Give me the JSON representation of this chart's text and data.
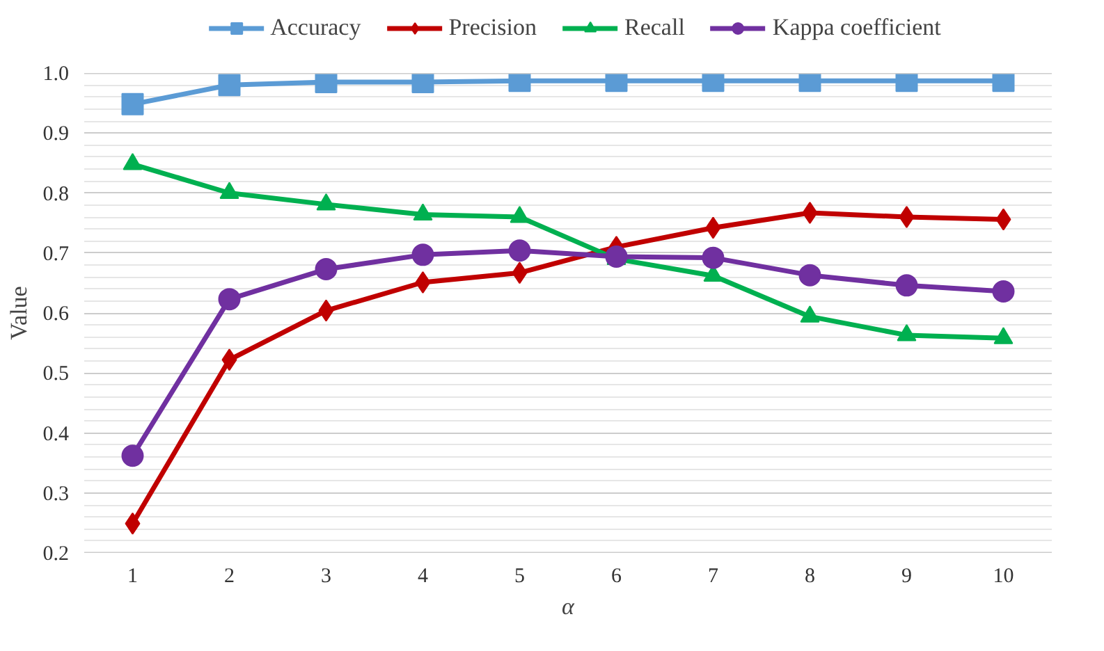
{
  "chart_data": {
    "type": "line",
    "xlabel": "α",
    "ylabel": "Value",
    "categories": [
      "1",
      "2",
      "3",
      "4",
      "5",
      "6",
      "7",
      "8",
      "9",
      "10"
    ],
    "ylim": [
      0.2,
      1.0
    ],
    "yticks": [
      {
        "value": 0.2,
        "label": "0.2"
      },
      {
        "value": 0.3,
        "label": "0.3"
      },
      {
        "value": 0.4,
        "label": "0.4"
      },
      {
        "value": 0.5,
        "label": "0.5"
      },
      {
        "value": 0.6,
        "label": "0.6"
      },
      {
        "value": 0.7,
        "label": "0.7"
      },
      {
        "value": 0.8,
        "label": "0.8"
      },
      {
        "value": 0.9,
        "label": "0.9"
      },
      {
        "value": 1.0,
        "label": "1.0"
      }
    ],
    "grid": "y",
    "legend": "top",
    "series": [
      {
        "name": "Accuracy",
        "color": "#5b9bd5",
        "marker": "square",
        "values": [
          0.948,
          0.98,
          0.985,
          0.985,
          0.987,
          0.987,
          0.987,
          0.987,
          0.987,
          0.987
        ]
      },
      {
        "name": "Precision",
        "color": "#c00000",
        "marker": "diamond",
        "values": [
          0.249,
          0.522,
          0.604,
          0.651,
          0.667,
          0.71,
          0.742,
          0.767,
          0.76,
          0.756
        ]
      },
      {
        "name": "Recall",
        "color": "#00b050",
        "marker": "triangle",
        "values": [
          0.848,
          0.8,
          0.781,
          0.764,
          0.76,
          0.69,
          0.662,
          0.594,
          0.563,
          0.558
        ]
      },
      {
        "name": "Kappa coefficient",
        "color": "#7030a0",
        "marker": "circle",
        "values": [
          0.362,
          0.623,
          0.673,
          0.697,
          0.704,
          0.694,
          0.692,
          0.663,
          0.646,
          0.636
        ]
      }
    ]
  }
}
